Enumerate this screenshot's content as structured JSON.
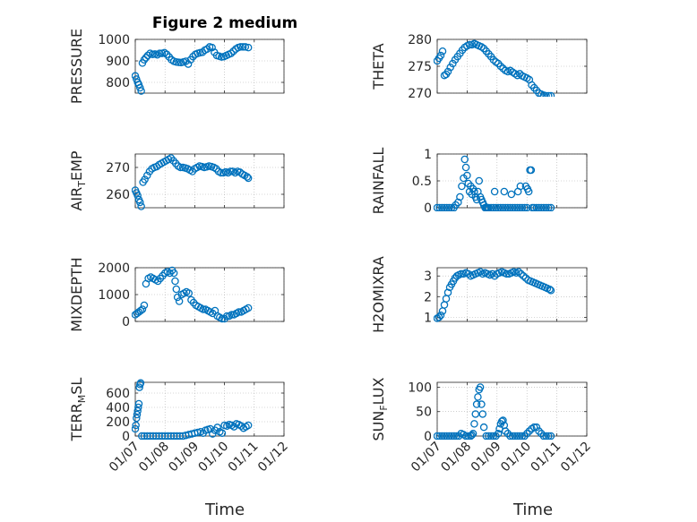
{
  "figure": {
    "title": "Figure 2 medium",
    "xlabel": "Time"
  },
  "colors": {
    "marker": "#0072BD",
    "axis": "#262626",
    "grid": "#b0b0b0"
  },
  "chart_data": [
    {
      "type": "scatter",
      "ylabel": "PRESSURE",
      "ylabel_sub": "",
      "xticks": [
        "01/07",
        "01/08",
        "01/09",
        "01/10",
        "01/11",
        "01/12"
      ],
      "xlim": [
        0,
        5
      ],
      "ylim": [
        750,
        1000
      ],
      "yticks": [
        800,
        900,
        1000
      ],
      "x": [
        0.0,
        0.04,
        0.08,
        0.12,
        0.16,
        0.2,
        0.24,
        0.3,
        0.36,
        0.42,
        0.5,
        0.58,
        0.66,
        0.74,
        0.82,
        0.9,
        0.98,
        1.06,
        1.14,
        1.22,
        1.3,
        1.38,
        1.46,
        1.54,
        1.62,
        1.7,
        1.78,
        1.86,
        1.94,
        2.02,
        2.1,
        2.18,
        2.26,
        2.34,
        2.42,
        2.5,
        2.58,
        2.66,
        2.74,
        2.82,
        2.9,
        2.98,
        3.06,
        3.14,
        3.22,
        3.3,
        3.38,
        3.46,
        3.54,
        3.62,
        3.7,
        3.8
      ],
      "y": [
        830,
        815,
        800,
        790,
        775,
        760,
        890,
        905,
        915,
        925,
        935,
        930,
        932,
        928,
        935,
        935,
        938,
        930,
        918,
        905,
        898,
        895,
        893,
        892,
        895,
        898,
        885,
        905,
        920,
        930,
        935,
        938,
        940,
        950,
        955,
        965,
        962,
        940,
        925,
        922,
        918,
        920,
        925,
        930,
        935,
        945,
        955,
        962,
        965,
        965,
        965,
        962
      ]
    },
    {
      "type": "scatter",
      "ylabel": "THETA",
      "ylabel_sub": "",
      "xticks": [
        "01/07",
        "01/08",
        "01/09",
        "01/10",
        "01/11",
        "01/12"
      ],
      "xlim": [
        0,
        5
      ],
      "ylim": [
        270,
        280
      ],
      "yticks": [
        270,
        275,
        280
      ],
      "x": [
        0.0,
        0.06,
        0.12,
        0.18,
        0.24,
        0.3,
        0.36,
        0.44,
        0.52,
        0.6,
        0.68,
        0.76,
        0.84,
        0.92,
        1.0,
        1.08,
        1.16,
        1.24,
        1.32,
        1.4,
        1.48,
        1.56,
        1.64,
        1.72,
        1.8,
        1.88,
        1.96,
        2.04,
        2.12,
        2.2,
        2.28,
        2.36,
        2.44,
        2.52,
        2.6,
        2.68,
        2.76,
        2.84,
        2.92,
        3.0,
        3.08,
        3.16,
        3.24,
        3.32,
        3.4,
        3.48,
        3.56,
        3.64,
        3.72,
        3.8
      ],
      "y": [
        276.0,
        276.5,
        277.0,
        277.8,
        273.3,
        273.5,
        274.0,
        274.8,
        275.5,
        276.2,
        276.8,
        277.4,
        278.0,
        278.5,
        278.8,
        279.0,
        279.0,
        279.2,
        279.0,
        278.8,
        278.6,
        278.3,
        277.8,
        277.3,
        276.8,
        276.2,
        275.8,
        275.5,
        275.0,
        274.6,
        274.2,
        274.0,
        274.2,
        273.9,
        273.6,
        273.3,
        273.6,
        273.2,
        273.0,
        272.8,
        272.5,
        271.5,
        271.0,
        270.5,
        270.0,
        269.8,
        269.6,
        269.5,
        269.5,
        269.5
      ]
    },
    {
      "type": "scatter",
      "ylabel": "AIR",
      "ylabel_sub": "T",
      "ylabel_tail": "EMP",
      "xticks": [
        "01/07",
        "01/08",
        "01/09",
        "01/10",
        "01/11",
        "01/12"
      ],
      "xlim": [
        0,
        5
      ],
      "ylim": [
        255,
        275
      ],
      "yticks": [
        260,
        270
      ],
      "x": [
        0.0,
        0.04,
        0.08,
        0.12,
        0.16,
        0.2,
        0.26,
        0.32,
        0.4,
        0.48,
        0.56,
        0.64,
        0.72,
        0.8,
        0.88,
        0.96,
        1.04,
        1.12,
        1.2,
        1.28,
        1.36,
        1.44,
        1.52,
        1.6,
        1.68,
        1.76,
        1.84,
        1.92,
        2.0,
        2.08,
        2.16,
        2.24,
        2.32,
        2.4,
        2.48,
        2.56,
        2.64,
        2.72,
        2.8,
        2.88,
        2.96,
        3.04,
        3.12,
        3.2,
        3.28,
        3.36,
        3.44,
        3.52,
        3.6,
        3.68,
        3.76,
        3.8
      ],
      "y": [
        261.5,
        260.5,
        259.5,
        258.0,
        257.0,
        255.5,
        264.5,
        265.5,
        267.0,
        268.5,
        269.5,
        270.0,
        270.3,
        271.0,
        271.5,
        272.0,
        272.5,
        273.0,
        273.5,
        272.5,
        271.5,
        270.5,
        270.0,
        270.0,
        269.8,
        269.5,
        269.0,
        268.5,
        269.5,
        270.0,
        270.5,
        270.3,
        270.0,
        270.2,
        270.5,
        270.3,
        270.0,
        269.5,
        268.5,
        268.0,
        268.0,
        268.3,
        268.0,
        268.5,
        268.5,
        268.0,
        268.5,
        268.2,
        267.5,
        267.0,
        266.5,
        266.0
      ]
    },
    {
      "type": "scatter",
      "ylabel": "RAINFALL",
      "ylabel_sub": "",
      "xticks": [
        "01/07",
        "01/08",
        "01/09",
        "01/10",
        "01/11",
        "01/12"
      ],
      "xlim": [
        0,
        5
      ],
      "ylim": [
        0,
        1
      ],
      "yticks": [
        0,
        0.5,
        1
      ],
      "x": [
        0.0,
        0.08,
        0.16,
        0.24,
        0.32,
        0.4,
        0.48,
        0.56,
        0.62,
        0.7,
        0.76,
        0.82,
        0.88,
        0.92,
        0.96,
        1.0,
        1.04,
        1.08,
        1.12,
        1.16,
        1.2,
        1.24,
        1.28,
        1.32,
        1.36,
        1.4,
        1.44,
        1.48,
        1.52,
        1.56,
        1.6,
        1.64,
        1.68,
        1.72,
        1.8,
        1.88,
        1.96,
        2.04,
        2.12,
        2.2,
        2.28,
        2.36,
        2.44,
        2.52,
        2.6,
        2.68,
        2.76,
        2.84,
        2.92,
        3.0,
        3.06,
        3.1,
        3.14,
        3.18,
        3.24,
        3.32,
        3.4,
        3.48,
        3.56,
        3.64,
        3.72,
        3.8,
        1.92,
        2.24,
        2.48,
        2.7,
        2.78,
        2.96,
        3.02
      ],
      "y": [
        0,
        0,
        0,
        0,
        0,
        0,
        0,
        0,
        0.05,
        0.1,
        0.2,
        0.4,
        0.55,
        0.9,
        0.75,
        0.6,
        0.45,
        0.3,
        0.4,
        0.25,
        0.35,
        0.3,
        0.2,
        0.15,
        0.3,
        0.5,
        0.2,
        0.15,
        0.1,
        0.05,
        0,
        0,
        0,
        0,
        0,
        0,
        0,
        0,
        0,
        0,
        0,
        0,
        0,
        0,
        0,
        0,
        0,
        0,
        0,
        0,
        0.3,
        0.7,
        0.7,
        0,
        0,
        0,
        0,
        0,
        0,
        0,
        0,
        0,
        0.3,
        0.3,
        0.25,
        0.3,
        0.4,
        0.4,
        0.35
      ]
    },
    {
      "type": "scatter",
      "ylabel": "MIXDEPTH",
      "ylabel_sub": "",
      "xticks": [
        "01/07",
        "01/08",
        "01/09",
        "01/10",
        "01/11",
        "01/12"
      ],
      "xlim": [
        0,
        5
      ],
      "ylim": [
        0,
        2000
      ],
      "yticks": [
        0,
        1000,
        2000
      ],
      "x": [
        0.0,
        0.06,
        0.12,
        0.18,
        0.24,
        0.3,
        0.36,
        0.44,
        0.52,
        0.6,
        0.68,
        0.76,
        0.84,
        0.92,
        1.0,
        1.08,
        1.16,
        1.24,
        1.3,
        1.34,
        1.38,
        1.42,
        1.48,
        1.56,
        1.64,
        1.72,
        1.8,
        1.88,
        1.96,
        2.04,
        2.12,
        2.2,
        2.28,
        2.36,
        2.44,
        2.52,
        2.6,
        2.68,
        2.76,
        2.84,
        2.92,
        3.0,
        3.08,
        3.16,
        3.24,
        3.32,
        3.4,
        3.48,
        3.56,
        3.64,
        3.72,
        3.8
      ],
      "y": [
        250,
        300,
        350,
        400,
        450,
        600,
        1400,
        1600,
        1650,
        1600,
        1550,
        1500,
        1600,
        1700,
        1800,
        1850,
        1800,
        1900,
        1800,
        1500,
        1200,
        900,
        750,
        1000,
        1050,
        1100,
        1050,
        800,
        700,
        600,
        550,
        500,
        450,
        450,
        400,
        350,
        300,
        400,
        200,
        150,
        100,
        100,
        200,
        200,
        250,
        250,
        300,
        350,
        350,
        400,
        450,
        500
      ]
    },
    {
      "type": "scatter",
      "ylabel": "H2OMIXRA",
      "ylabel_sub": "",
      "xticks": [
        "01/07",
        "01/08",
        "01/09",
        "01/10",
        "01/11",
        "01/12"
      ],
      "xlim": [
        0,
        5
      ],
      "ylim": [
        0.8,
        3.4
      ],
      "yticks": [
        1,
        2,
        3
      ],
      "x": [
        0.0,
        0.06,
        0.12,
        0.18,
        0.24,
        0.3,
        0.36,
        0.42,
        0.48,
        0.54,
        0.6,
        0.66,
        0.72,
        0.8,
        0.88,
        0.96,
        1.04,
        1.12,
        1.2,
        1.28,
        1.36,
        1.44,
        1.52,
        1.6,
        1.68,
        1.76,
        1.84,
        1.92,
        2.0,
        2.08,
        2.16,
        2.24,
        2.32,
        2.4,
        2.48,
        2.56,
        2.64,
        2.72,
        2.8,
        2.88,
        2.96,
        3.04,
        3.12,
        3.2,
        3.28,
        3.36,
        3.44,
        3.52,
        3.6,
        3.68,
        3.76,
        3.8
      ],
      "y": [
        0.95,
        1.0,
        1.1,
        1.3,
        1.6,
        1.9,
        2.2,
        2.45,
        2.6,
        2.75,
        2.9,
        3.0,
        3.05,
        3.1,
        3.1,
        3.15,
        3.1,
        3.0,
        3.05,
        3.1,
        3.15,
        3.2,
        3.1,
        3.15,
        3.1,
        3.05,
        3.1,
        3.0,
        3.1,
        3.15,
        3.2,
        3.15,
        3.1,
        3.1,
        3.15,
        3.2,
        3.15,
        3.2,
        3.1,
        3.0,
        2.9,
        2.8,
        2.75,
        2.7,
        2.65,
        2.6,
        2.55,
        2.5,
        2.45,
        2.4,
        2.35,
        2.3
      ]
    },
    {
      "type": "scatter",
      "ylabel": "TERR",
      "ylabel_sub": "M",
      "ylabel_tail": "SL",
      "xticks": [
        "01/07",
        "01/08",
        "01/09",
        "01/10",
        "01/11",
        "01/12"
      ],
      "xlim": [
        0,
        5
      ],
      "ylim": [
        0,
        750
      ],
      "yticks": [
        0,
        200,
        400,
        600
      ],
      "x": [
        0.0,
        0.02,
        0.04,
        0.06,
        0.08,
        0.1,
        0.12,
        0.14,
        0.16,
        0.18,
        0.22,
        0.3,
        0.4,
        0.5,
        0.6,
        0.7,
        0.8,
        0.9,
        1.0,
        1.1,
        1.2,
        1.3,
        1.4,
        1.5,
        1.6,
        1.7,
        1.8,
        1.9,
        2.0,
        2.1,
        2.2,
        2.28,
        2.36,
        2.44,
        2.52,
        2.6,
        2.68,
        2.76,
        2.84,
        2.92,
        3.0,
        3.08,
        3.16,
        3.24,
        3.32,
        3.4,
        3.48,
        3.56,
        3.64,
        3.72,
        3.8
      ],
      "y": [
        100,
        150,
        250,
        300,
        350,
        400,
        450,
        680,
        720,
        740,
        0,
        0,
        0,
        0,
        0,
        0,
        0,
        0,
        0,
        0,
        0,
        0,
        0,
        0,
        0,
        10,
        20,
        30,
        40,
        50,
        60,
        40,
        80,
        90,
        100,
        30,
        80,
        120,
        60,
        40,
        150,
        140,
        160,
        150,
        130,
        170,
        160,
        140,
        110,
        130,
        150
      ]
    },
    {
      "type": "scatter",
      "ylabel": "SUN",
      "ylabel_sub": "F",
      "ylabel_tail": "LUX",
      "xticks": [
        "01/07",
        "01/08",
        "01/09",
        "01/10",
        "01/11",
        "01/12"
      ],
      "xlim": [
        0,
        5
      ],
      "ylim": [
        0,
        110
      ],
      "yticks": [
        0,
        50,
        100
      ],
      "x": [
        0.0,
        0.08,
        0.16,
        0.24,
        0.32,
        0.4,
        0.48,
        0.56,
        0.64,
        0.72,
        0.8,
        0.88,
        0.96,
        1.04,
        1.12,
        1.16,
        1.2,
        1.24,
        1.28,
        1.32,
        1.36,
        1.4,
        1.44,
        1.48,
        1.52,
        1.56,
        1.64,
        1.72,
        1.8,
        1.88,
        1.96,
        2.04,
        2.08,
        2.12,
        2.16,
        2.2,
        2.24,
        2.28,
        2.36,
        2.44,
        2.52,
        2.6,
        2.68,
        2.76,
        2.84,
        2.92,
        3.0,
        3.08,
        3.16,
        3.24,
        3.32,
        3.4,
        3.48,
        3.56,
        3.64,
        3.72,
        3.8
      ],
      "y": [
        0,
        0,
        0,
        0,
        0,
        0,
        0,
        0,
        0,
        0,
        5,
        3,
        0,
        0,
        0,
        2,
        5,
        25,
        45,
        65,
        80,
        95,
        100,
        65,
        45,
        18,
        0,
        0,
        0,
        0,
        0,
        5,
        15,
        25,
        30,
        32,
        22,
        10,
        5,
        0,
        0,
        0,
        0,
        0,
        0,
        0,
        5,
        10,
        15,
        18,
        18,
        10,
        5,
        0,
        0,
        0,
        0
      ]
    }
  ]
}
